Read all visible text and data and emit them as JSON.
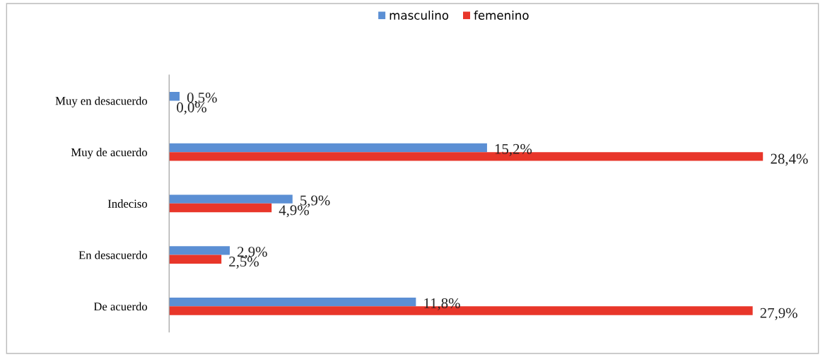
{
  "chart_data": {
    "type": "bar",
    "orientation": "horizontal",
    "categories": [
      "Muy en desacuerdo",
      "Muy de acuerdo",
      "Indeciso",
      "En desacuerdo",
      "De acuerdo"
    ],
    "series": [
      {
        "name": "masculino",
        "color": "#5b8fd4",
        "values": [
          0.5,
          15.2,
          5.9,
          2.9,
          11.8
        ],
        "value_labels": [
          "0,5%",
          "15,2%",
          "5,9%",
          "2,9%",
          "11,8%"
        ]
      },
      {
        "name": "femenino",
        "color": "#e8362a",
        "values": [
          0.0,
          28.4,
          4.9,
          2.5,
          27.9
        ],
        "value_labels": [
          "0,0%",
          "28,4%",
          "4,9%",
          "2,5%",
          "27,9%"
        ]
      }
    ],
    "legend": "top",
    "grid": false,
    "tick_labels": "y"
  }
}
